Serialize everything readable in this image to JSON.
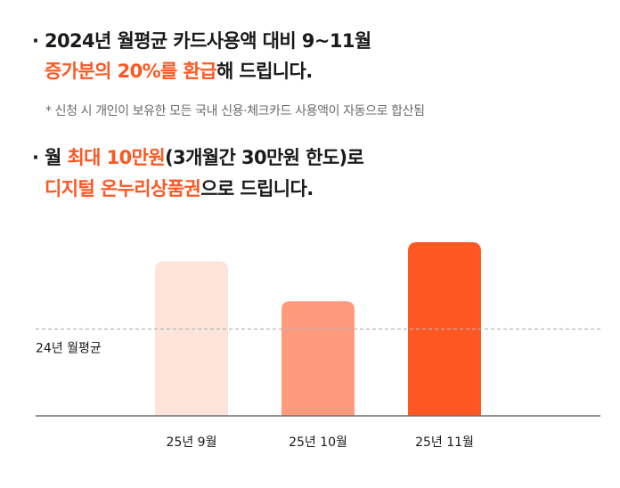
{
  "bullet1": {
    "line1": "2024년 월평균 카드사용액 대비 9~11월",
    "line2_highlight": "증가분의 20%를 환급",
    "line2_rest": "해 드립니다."
  },
  "note": "* 신청 시 개인이 보유한 모든 국내 신용·체크카드 사용액이 자동으로 합산됨",
  "bullet2": {
    "line1_a": "월 ",
    "line1_highlight": "최대 10만원",
    "line1_b": "(3개월간 30만원 한도)로",
    "line2_highlight": "디지털 온누리상품권",
    "line2_rest": "으로 드립니다."
  },
  "colors": {
    "accent": "#ff5722",
    "bar1": "#fde4da",
    "bar2": "#ff9a7d",
    "bar3": "#ff5722"
  },
  "chart_data": {
    "type": "bar",
    "categories": [
      "25년 9월",
      "25년 10월",
      "25년 11월"
    ],
    "values": [
      1.78,
      1.32,
      2.0
    ],
    "reference_line": {
      "label": "24년 월평균",
      "value": 1.0,
      "style": "dashed"
    },
    "ylim": [
      0,
      2.0
    ],
    "title": "",
    "xlabel": "",
    "ylabel": ""
  }
}
